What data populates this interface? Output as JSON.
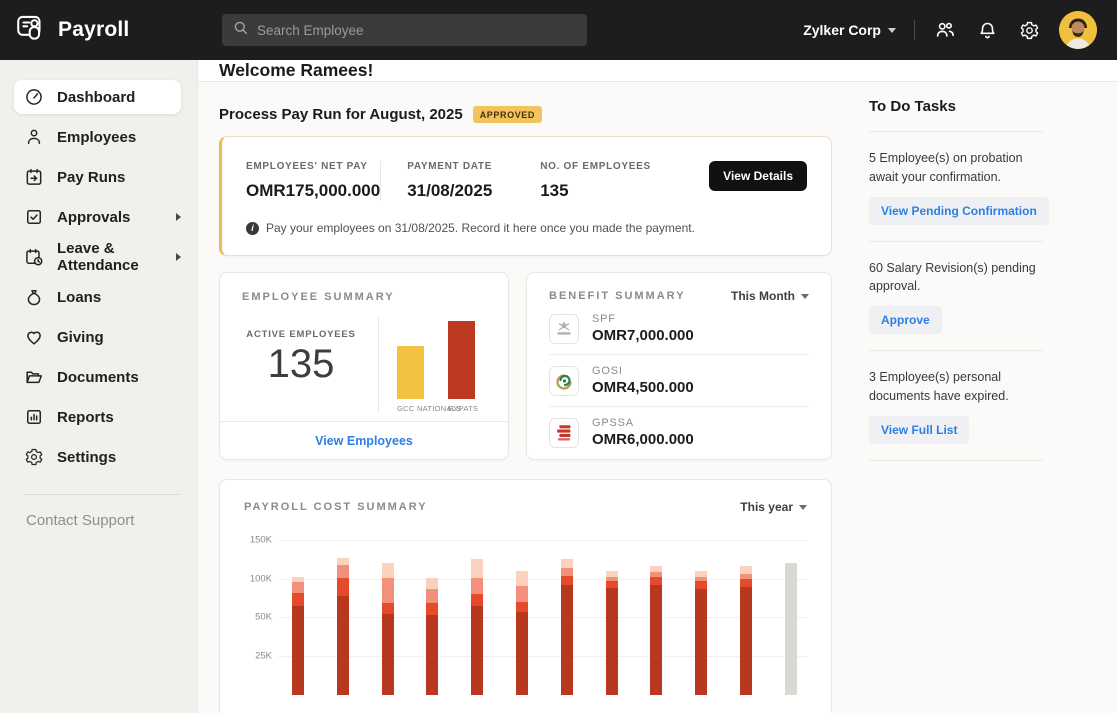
{
  "topbar": {
    "app_name": "Payroll",
    "search_placeholder": "Search Employee",
    "org_name": "Zylker Corp"
  },
  "sidebar": {
    "items": [
      {
        "label": "Dashboard",
        "icon": "dashboard-icon",
        "active": true,
        "has_submenu": false
      },
      {
        "label": "Employees",
        "icon": "employees-icon",
        "active": false,
        "has_submenu": false
      },
      {
        "label": "Pay Runs",
        "icon": "pay-runs-icon",
        "active": false,
        "has_submenu": false
      },
      {
        "label": "Approvals",
        "icon": "approvals-icon",
        "active": false,
        "has_submenu": true
      },
      {
        "label": "Leave & Attendance",
        "icon": "leave-attendance-icon",
        "active": false,
        "has_submenu": true
      },
      {
        "label": "Loans",
        "icon": "loans-icon",
        "active": false,
        "has_submenu": false
      },
      {
        "label": "Giving",
        "icon": "giving-icon",
        "active": false,
        "has_submenu": false
      },
      {
        "label": "Documents",
        "icon": "documents-icon",
        "active": false,
        "has_submenu": false
      },
      {
        "label": "Reports",
        "icon": "reports-icon",
        "active": false,
        "has_submenu": false
      },
      {
        "label": "Settings",
        "icon": "settings-icon",
        "active": false,
        "has_submenu": false
      }
    ],
    "footer_link": "Contact Support"
  },
  "main": {
    "welcome": "Welcome Ramees!",
    "payrun": {
      "title": "Process Pay Run for August, 2025",
      "status_badge": "APPROVED",
      "stats": [
        {
          "label": "EMPLOYEES' NET PAY",
          "value": "OMR175,000.000"
        },
        {
          "label": "PAYMENT DATE",
          "value": "31/08/2025"
        },
        {
          "label": "NO. OF EMPLOYEES",
          "value": "135"
        }
      ],
      "view_details_label": "View Details",
      "note": "Pay your employees on 31/08/2025. Record it here once you made the payment."
    },
    "employee_summary": {
      "title": "EMPLOYEE SUMMARY",
      "active_label": "ACTIVE EMPLOYEES",
      "active_count": "135",
      "footer_link": "View Employees"
    },
    "benefit_summary": {
      "title": "BENEFIT SUMMARY",
      "period_selector": "This Month",
      "rows": [
        {
          "name": "SPF",
          "amount": "OMR7,000.000",
          "logo": "spf-logo"
        },
        {
          "name": "GOSI",
          "amount": "OMR4,500.000",
          "logo": "gosi-logo"
        },
        {
          "name": "GPSSA",
          "amount": "OMR6,000.000",
          "logo": "gpssa-logo"
        }
      ]
    },
    "payroll_cost_summary": {
      "title": "PAYROLL COST SUMMARY",
      "period_selector": "This year"
    }
  },
  "todo": {
    "title": "To Do Tasks",
    "tasks": [
      {
        "text": "5 Employee(s) on probation await your confirmation.",
        "action": "View Pending Confirmation"
      },
      {
        "text": "60 Salary Revision(s) pending approval.",
        "action": "Approve"
      },
      {
        "text": "3 Employee(s) personal documents have expired.",
        "action": "View Full List"
      }
    ]
  },
  "chart_data": [
    {
      "type": "bar",
      "title": "EMPLOYEE SUMMARY",
      "categories": [
        "GCC NATIONALS",
        "EXPATS"
      ],
      "relative_heights_pct": [
        68,
        100
      ],
      "colors": [
        "#f3c243",
        "#bd3a20"
      ],
      "note": "bar values not labeled on screen; heights are relative"
    },
    {
      "type": "bar",
      "subtype": "stacked",
      "title": "PAYROLL COST SUMMARY",
      "period": "This year",
      "y_tick_labels": [
        "150K",
        "100K",
        "50K",
        "25K"
      ],
      "grid": true,
      "x_labels_visible": false,
      "segment_colors": [
        "#b8371f",
        "#e64a2c",
        "#f2907b",
        "#fad2bd"
      ],
      "projected_color": "#d6dad2",
      "unit": "K (OMR thousands, estimated)",
      "bars": [
        {
          "segments": [
            64,
            17,
            15,
            6
          ],
          "projected": false
        },
        {
          "segments": [
            78,
            23,
            17,
            9
          ],
          "projected": false
        },
        {
          "segments": [
            54,
            15,
            32,
            19
          ],
          "projected": false
        },
        {
          "segments": [
            53,
            15,
            19,
            14
          ],
          "projected": false
        },
        {
          "segments": [
            64,
            16,
            21,
            25
          ],
          "projected": false
        },
        {
          "segments": [
            57,
            13,
            21,
            19
          ],
          "projected": false
        },
        {
          "segments": [
            92,
            12,
            10,
            12
          ],
          "projected": false
        },
        {
          "segments": [
            88,
            9,
            6,
            7
          ],
          "projected": false
        },
        {
          "segments": [
            92,
            11,
            6,
            8
          ],
          "projected": false
        },
        {
          "segments": [
            87,
            10,
            6,
            7
          ],
          "projected": false
        },
        {
          "segments": [
            89,
            11,
            7,
            10
          ],
          "projected": false
        },
        {
          "segments": [
            121
          ],
          "projected": true
        }
      ]
    }
  ]
}
